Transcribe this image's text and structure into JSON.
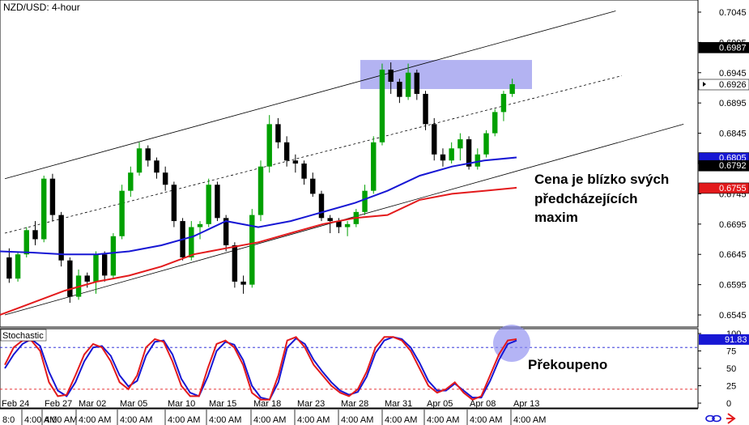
{
  "chart_data": {
    "type": "candlestick",
    "title": "NZD/USD: 4-hour",
    "main_panel": {
      "ylim": [
        0.6525,
        0.7065
      ],
      "y_ticks": [
        "0.7045",
        "0.6995",
        "0.6945",
        "0.6895",
        "0.6845",
        "0.6795",
        "0.6745",
        "0.6695",
        "0.6645",
        "0.6595",
        "0.6545"
      ],
      "price_labels": [
        {
          "text": "0.6987",
          "value": 0.6987,
          "color": "#000000",
          "text_color": "#ffffff"
        },
        {
          "text": "0.6926",
          "value": 0.6926,
          "color": "#ffffff",
          "text_color": "#000000",
          "current": true
        },
        {
          "text": "0.6805",
          "value": 0.6805,
          "color": "#1717d4",
          "text_color": "#ffffff"
        },
        {
          "text": "0.6792",
          "value": 0.6792,
          "color": "#000000",
          "text_color": "#ffffff"
        },
        {
          "text": "0.6755",
          "value": 0.6755,
          "color": "#e31a1c",
          "text_color": "#ffffff"
        }
      ],
      "candles_ohlc": [
        [
          0.664,
          0.6655,
          0.6598,
          0.6605
        ],
        [
          0.6605,
          0.665,
          0.66,
          0.6645
        ],
        [
          0.6645,
          0.669,
          0.664,
          0.6685
        ],
        [
          0.6685,
          0.67,
          0.666,
          0.667
        ],
        [
          0.667,
          0.6775,
          0.6665,
          0.677
        ],
        [
          0.677,
          0.6778,
          0.67,
          0.671
        ],
        [
          0.671,
          0.6715,
          0.6625,
          0.6635
        ],
        [
          0.6635,
          0.664,
          0.6565,
          0.6575
        ],
        [
          0.6575,
          0.662,
          0.657,
          0.661
        ],
        [
          0.661,
          0.6615,
          0.659,
          0.66
        ],
        [
          0.66,
          0.665,
          0.658,
          0.6645
        ],
        [
          0.6645,
          0.665,
          0.66,
          0.661
        ],
        [
          0.661,
          0.668,
          0.6605,
          0.6675
        ],
        [
          0.6675,
          0.676,
          0.667,
          0.675
        ],
        [
          0.675,
          0.679,
          0.674,
          0.678
        ],
        [
          0.678,
          0.683,
          0.6775,
          0.682
        ],
        [
          0.682,
          0.6825,
          0.679,
          0.68
        ],
        [
          0.68,
          0.6805,
          0.677,
          0.678
        ],
        [
          0.678,
          0.679,
          0.675,
          0.676
        ],
        [
          0.676,
          0.6765,
          0.669,
          0.67
        ],
        [
          0.67,
          0.6705,
          0.6635,
          0.664
        ],
        [
          0.664,
          0.67,
          0.6635,
          0.669
        ],
        [
          0.669,
          0.67,
          0.667,
          0.6695
        ],
        [
          0.6695,
          0.677,
          0.669,
          0.676
        ],
        [
          0.676,
          0.6765,
          0.67,
          0.6705
        ],
        [
          0.6705,
          0.671,
          0.665,
          0.666
        ],
        [
          0.666,
          0.6665,
          0.659,
          0.66
        ],
        [
          0.66,
          0.661,
          0.658,
          0.6595
        ],
        [
          0.6595,
          0.672,
          0.659,
          0.671
        ],
        [
          0.671,
          0.68,
          0.67,
          0.679
        ],
        [
          0.679,
          0.6875,
          0.678,
          0.686
        ],
        [
          0.686,
          0.687,
          0.682,
          0.683
        ],
        [
          0.683,
          0.684,
          0.679,
          0.68
        ],
        [
          0.68,
          0.681,
          0.678,
          0.6795
        ],
        [
          0.6795,
          0.68,
          0.676,
          0.677
        ],
        [
          0.677,
          0.678,
          0.674,
          0.6745
        ],
        [
          0.6745,
          0.675,
          0.67,
          0.6705
        ],
        [
          0.6705,
          0.671,
          0.668,
          0.67
        ],
        [
          0.67,
          0.6705,
          0.668,
          0.669
        ],
        [
          0.669,
          0.67,
          0.6675,
          0.6695
        ],
        [
          0.6695,
          0.672,
          0.669,
          0.6715
        ],
        [
          0.6715,
          0.676,
          0.671,
          0.675
        ],
        [
          0.675,
          0.684,
          0.6745,
          0.683
        ],
        [
          0.683,
          0.696,
          0.6825,
          0.695
        ],
        [
          0.695,
          0.6962,
          0.691,
          0.693
        ],
        [
          0.693,
          0.6935,
          0.6895,
          0.6905
        ],
        [
          0.6905,
          0.696,
          0.69,
          0.6945
        ],
        [
          0.6945,
          0.695,
          0.69,
          0.691
        ],
        [
          0.691,
          0.6915,
          0.685,
          0.686
        ],
        [
          0.686,
          0.687,
          0.68,
          0.681
        ],
        [
          0.681,
          0.682,
          0.679,
          0.68
        ],
        [
          0.68,
          0.683,
          0.6795,
          0.682
        ],
        [
          0.682,
          0.6845,
          0.68,
          0.6835
        ],
        [
          0.6835,
          0.684,
          0.6785,
          0.679
        ],
        [
          0.679,
          0.682,
          0.6785,
          0.681
        ],
        [
          0.681,
          0.685,
          0.6805,
          0.6845
        ],
        [
          0.6845,
          0.6885,
          0.684,
          0.688
        ],
        [
          0.688,
          0.6915,
          0.6865,
          0.691
        ],
        [
          0.691,
          0.6935,
          0.6905,
          0.6926
        ]
      ],
      "ema_blue": [
        0.665,
        0.6648,
        0.6645,
        0.6645,
        0.665,
        0.666,
        0.6675,
        0.67,
        0.669,
        0.67,
        0.6715,
        0.673,
        0.675,
        0.6775,
        0.679,
        0.68,
        0.6805
      ],
      "ema_red": [
        0.6545,
        0.6565,
        0.6585,
        0.66,
        0.661,
        0.6625,
        0.6645,
        0.6655,
        0.6665,
        0.668,
        0.6695,
        0.6705,
        0.671,
        0.6735,
        0.6745,
        0.675,
        0.6755
      ],
      "channel": {
        "upper": [
          [
            0,
            0.677
          ],
          [
            0.99,
            0.7047
          ]
        ],
        "middle": [
          [
            0,
            0.668
          ],
          [
            1.0,
            0.694
          ]
        ],
        "lower": [
          [
            0,
            0.6545
          ],
          [
            1.1,
            0.686
          ]
        ]
      },
      "resistance_zone": [
        0.6918,
        0.6966
      ],
      "annotation": [
        "Cena je blízko svých",
        "předcházejících",
        "maxim"
      ]
    },
    "stochastic_panel": {
      "title": "Stochastic",
      "ylim": [
        0,
        100
      ],
      "y_ticks": [
        "100",
        "75",
        "50",
        "25",
        "0"
      ],
      "levels": [
        80,
        20
      ],
      "current_label": "91.83",
      "k_line": [
        55,
        80,
        90,
        90,
        75,
        30,
        10,
        12,
        40,
        70,
        85,
        80,
        60,
        30,
        20,
        40,
        80,
        92,
        88,
        60,
        25,
        10,
        10,
        50,
        85,
        90,
        80,
        55,
        15,
        5,
        5,
        40,
        90,
        95,
        80,
        55,
        40,
        25,
        15,
        10,
        20,
        45,
        80,
        95,
        95,
        90,
        75,
        50,
        25,
        15,
        20,
        30,
        15,
        5,
        10,
        40,
        70,
        90,
        92
      ],
      "d_line": [
        50,
        70,
        85,
        92,
        82,
        45,
        18,
        10,
        30,
        60,
        80,
        82,
        68,
        40,
        24,
        32,
        68,
        88,
        90,
        70,
        35,
        15,
        10,
        38,
        75,
        88,
        84,
        62,
        25,
        8,
        5,
        30,
        80,
        93,
        85,
        62,
        45,
        30,
        18,
        12,
        16,
        38,
        72,
        90,
        95,
        92,
        80,
        58,
        32,
        18,
        18,
        28,
        18,
        8,
        8,
        32,
        62,
        85,
        90
      ],
      "annotation": "Překoupeno"
    },
    "x_date_labels": [
      "Feb 24",
      "Feb 27",
      "Mar 02",
      "Mar 05",
      "Mar 10",
      "Mar 15",
      "Mar 18",
      "Mar 23",
      "Mar 28",
      "Mar 31",
      "Apr 05",
      "Apr 08",
      "Apr 13"
    ],
    "x_time_labels": [
      "4:00 AM",
      "4:00 AM",
      "4:00 AM",
      "4:00 AM",
      "4:00 AM",
      "4:00 AM",
      "4:00 AM",
      "4:00 AM",
      "4:00 AM",
      "4:00 AM",
      "4:00 AM",
      "4:00 AM",
      "4:00 AM"
    ],
    "x_first_time_label": "8:0",
    "colors": {
      "bull": "#00a000",
      "bear": "#000000",
      "ema_blue": "#1717d4",
      "ema_red": "#e31a1c",
      "zone": "#9999ee",
      "circle": "#8c8cf0",
      "k_line": "#e31a1c",
      "d_line": "#1717d4"
    }
  }
}
